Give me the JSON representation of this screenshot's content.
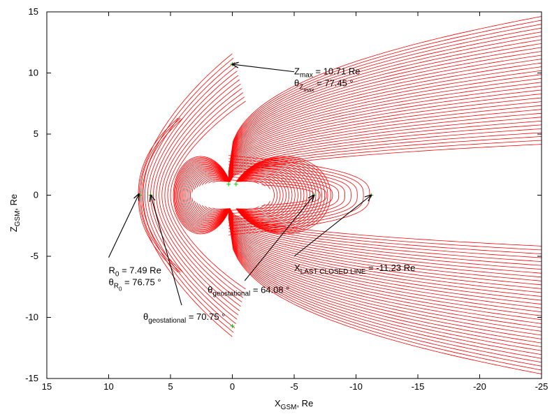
{
  "chart_data": {
    "type": "line",
    "xlabel": {
      "main": "X",
      "sub": "GSM",
      "tail": ", Re"
    },
    "ylabel": {
      "main": "Z",
      "sub": "GSM",
      "tail": ", Re"
    },
    "xlim": [
      15,
      -25
    ],
    "ylim": [
      -15,
      15
    ],
    "xticks": [
      15,
      10,
      5,
      0,
      -5,
      -10,
      -15,
      -20,
      -25
    ],
    "yticks": [
      -15,
      -10,
      -5,
      0,
      5,
      10,
      15
    ],
    "grid": false,
    "legend": "none",
    "colors": {
      "field_lines": "#ff0000",
      "markers": "#00cc00",
      "axes": "#000000"
    },
    "markers": [
      {
        "x": 0.0,
        "y": 10.71
      },
      {
        "x": 7.49,
        "y": 0.0
      },
      {
        "x": 6.6,
        "y": 0.0
      },
      {
        "x": -6.6,
        "y": 0.0
      },
      {
        "x": -11.23,
        "y": 0.0
      },
      {
        "x": 0.3,
        "y": 0.9
      },
      {
        "x": -0.3,
        "y": 0.9
      },
      {
        "x": 0.0,
        "y": -10.71
      }
    ],
    "annotations": [
      {
        "lines": [
          [
            {
              "t": "Z"
            },
            {
              "t": "max",
              "sub": true
            },
            {
              "t": " = 10.71 Re"
            }
          ],
          [
            {
              "t": "θ"
            },
            {
              "t": "Z",
              "sub": true
            },
            {
              "t": "max",
              "subsub": true
            },
            {
              "t": " = 77.45 °"
            }
          ]
        ],
        "text_at": [
          -5.0,
          9.9
        ],
        "arrow_from": [
          -5.0,
          10.1
        ],
        "arrow_to": [
          0.0,
          10.71
        ]
      },
      {
        "lines": [
          [
            {
              "t": "R"
            },
            {
              "t": "0",
              "sub": true
            },
            {
              "t": " = 7.49 Re"
            }
          ],
          [
            {
              "t": "θ"
            },
            {
              "t": "R",
              "sub": true
            },
            {
              "t": "0",
              "subsub": true
            },
            {
              "t": " = 76.75 °"
            }
          ]
        ],
        "text_at": [
          10.0,
          -6.4
        ],
        "arrow_from": [
          10.0,
          -5.1
        ],
        "arrow_to": [
          7.55,
          0.1
        ]
      },
      {
        "lines": [
          [
            {
              "t": "θ"
            },
            {
              "t": "geostational",
              "sub": true
            },
            {
              "t": " = 70.75 °"
            }
          ]
        ],
        "text_at": [
          7.2,
          -10.2
        ],
        "arrow_from": [
          4.1,
          -9.0
        ],
        "arrow_to": [
          6.6,
          0.0
        ]
      },
      {
        "lines": [
          [
            {
              "t": "θ"
            },
            {
              "t": "geostational",
              "sub": true
            },
            {
              "t": " = 64.08 °"
            }
          ]
        ],
        "text_at": [
          2.0,
          -8.0
        ],
        "arrow_from": [
          -1.0,
          -7.0
        ],
        "arrow_to": [
          -6.6,
          0.0
        ]
      },
      {
        "lines": [
          [
            {
              "t": "X"
            },
            {
              "t": "LAST CLOSED LINE",
              "sub": true
            },
            {
              "t": " = -11.23 Re"
            }
          ]
        ],
        "text_at": [
          -5.0,
          -6.2
        ],
        "arrow_from": [
          -5.0,
          -5.0
        ],
        "arrow_to": [
          -11.23,
          0.0
        ]
      }
    ]
  }
}
